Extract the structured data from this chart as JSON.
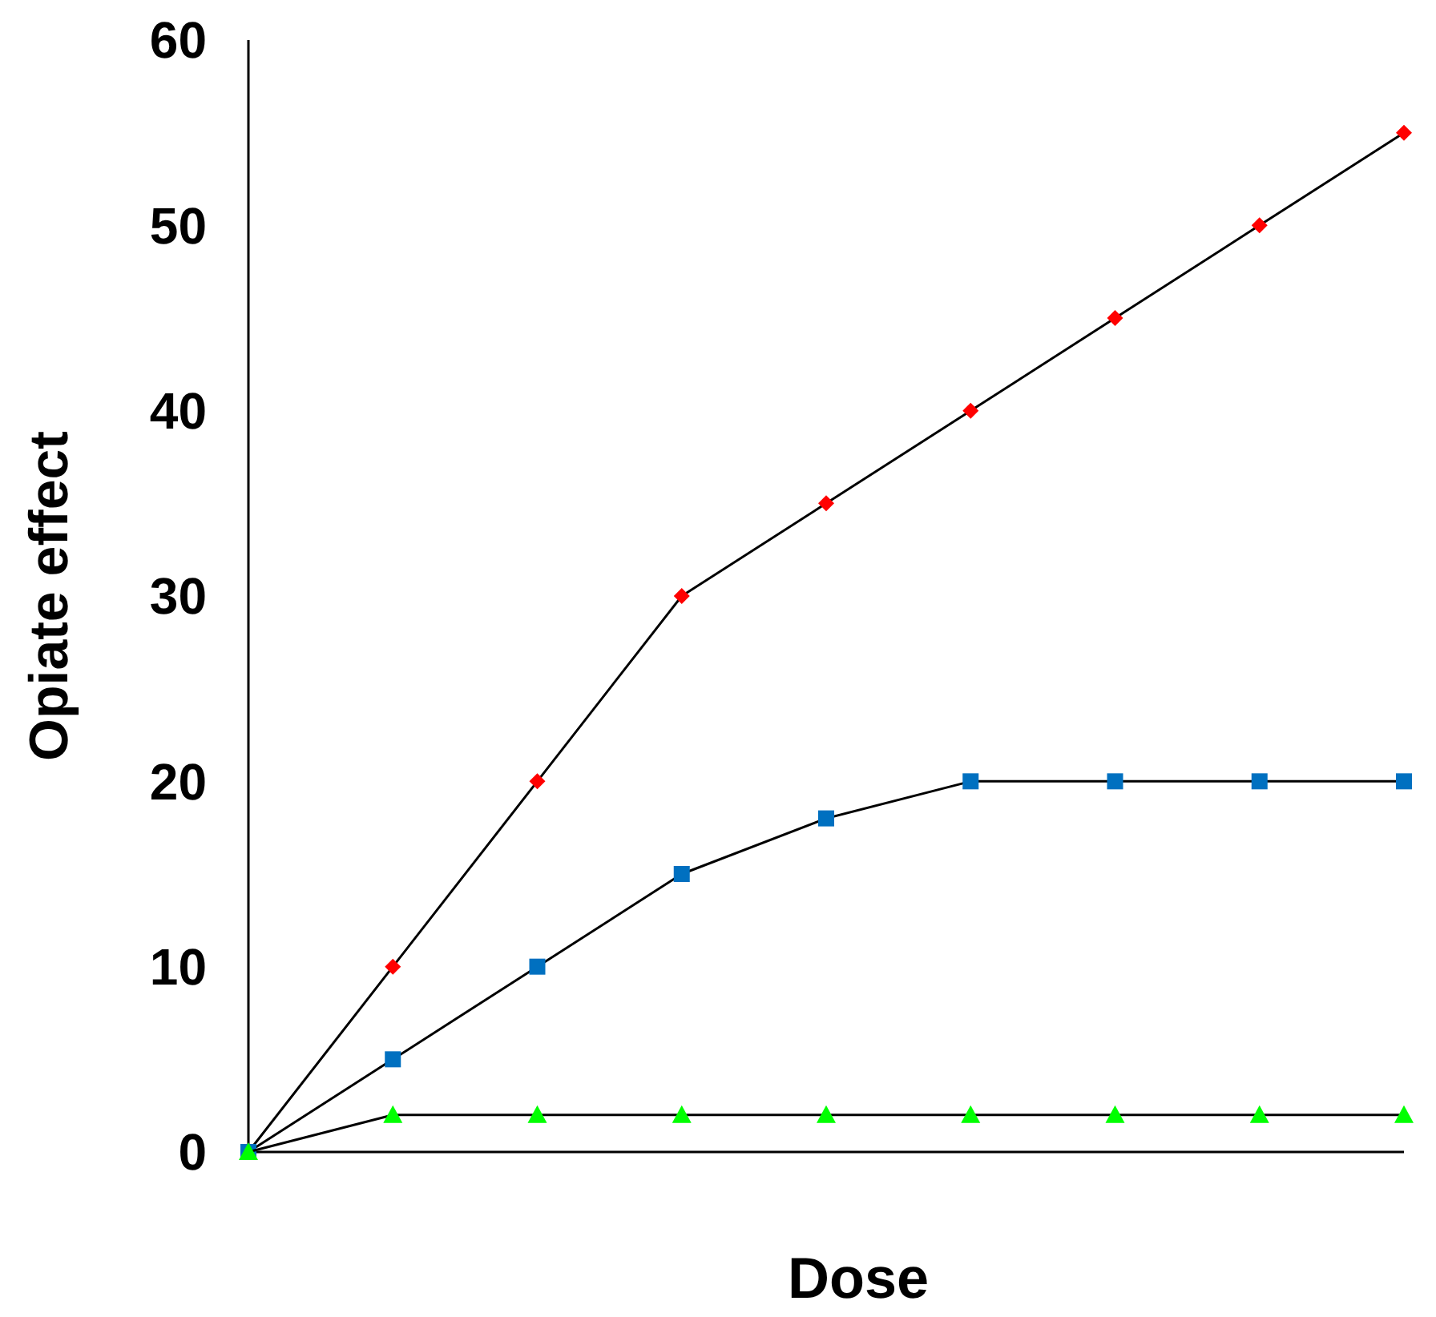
{
  "chart_data": {
    "type": "line",
    "xlabel": "Dose",
    "ylabel": "Opiate effect",
    "categories": [
      null,
      null,
      null,
      null,
      null,
      null,
      null,
      null,
      null
    ],
    "ylim": [
      0,
      60
    ],
    "yticks": [
      0,
      10,
      20,
      30,
      40,
      50,
      60
    ],
    "grid": false,
    "line_style": "solid",
    "series": [
      {
        "color": "#ff0000",
        "marker": "diamond",
        "values": [
          0,
          10,
          20,
          30,
          35,
          40,
          45,
          50,
          55
        ]
      },
      {
        "color": "#0070c0",
        "marker": "square",
        "values": [
          0,
          5,
          10,
          15,
          18,
          20,
          20,
          20,
          20
        ]
      },
      {
        "color": "#00ff00",
        "marker": "triangle",
        "values": [
          0,
          2,
          2,
          2,
          2,
          2,
          2,
          2,
          2
        ]
      }
    ]
  }
}
